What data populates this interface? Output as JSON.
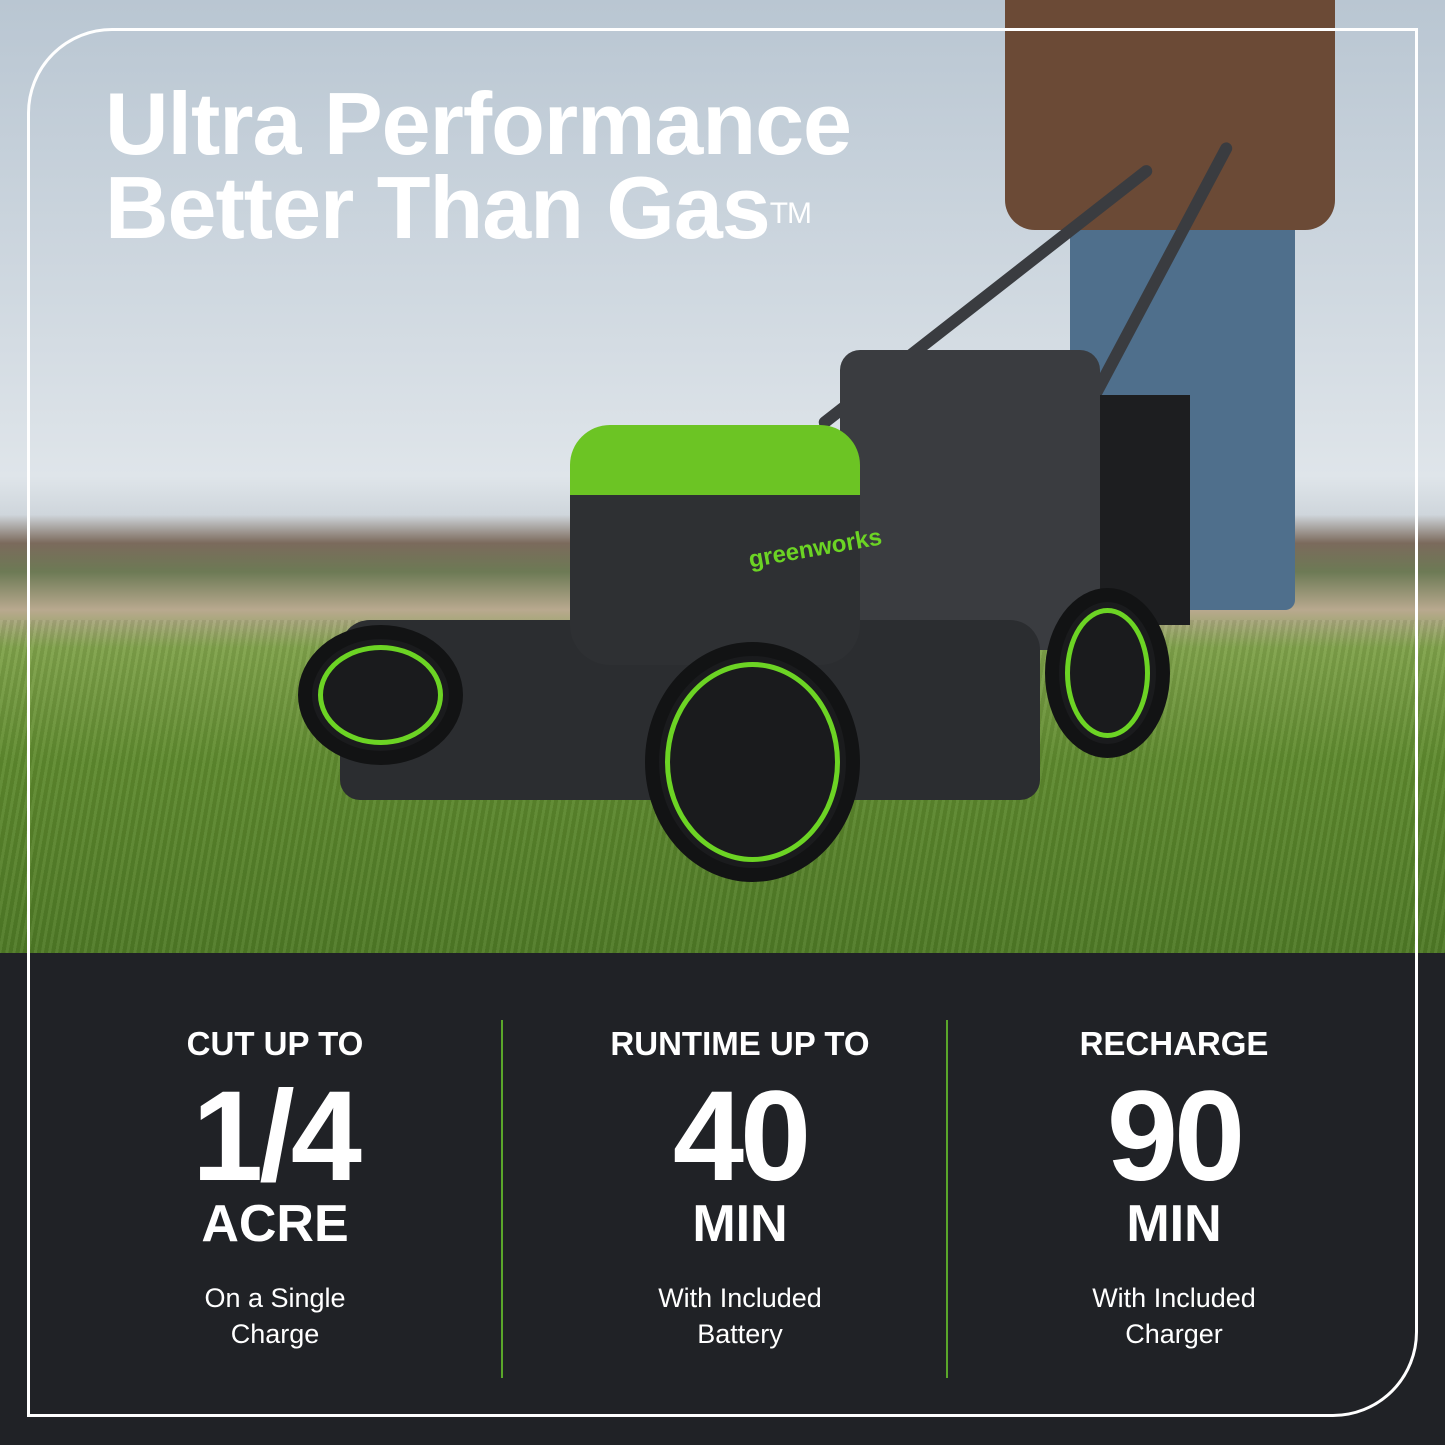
{
  "headline": {
    "line1": "Ultra Performance",
    "line2": "Better Than Gas",
    "trademark": "TM"
  },
  "product_brand": "greenworks",
  "colors": {
    "accent_green": "#6cd424",
    "panel": "#202226",
    "divider": "#5aa72a"
  },
  "stats": [
    {
      "label": "CUT UP TO",
      "value": "1/4",
      "unit": "ACRE",
      "desc_line1": "On a Single",
      "desc_line2": "Charge"
    },
    {
      "label": "RUNTIME UP TO",
      "value": "40",
      "unit": "MIN",
      "desc_line1": "With Included",
      "desc_line2": "Battery"
    },
    {
      "label": "RECHARGE",
      "value": "90",
      "unit": "MIN",
      "desc_line1": "With Included",
      "desc_line2": "Charger"
    }
  ]
}
